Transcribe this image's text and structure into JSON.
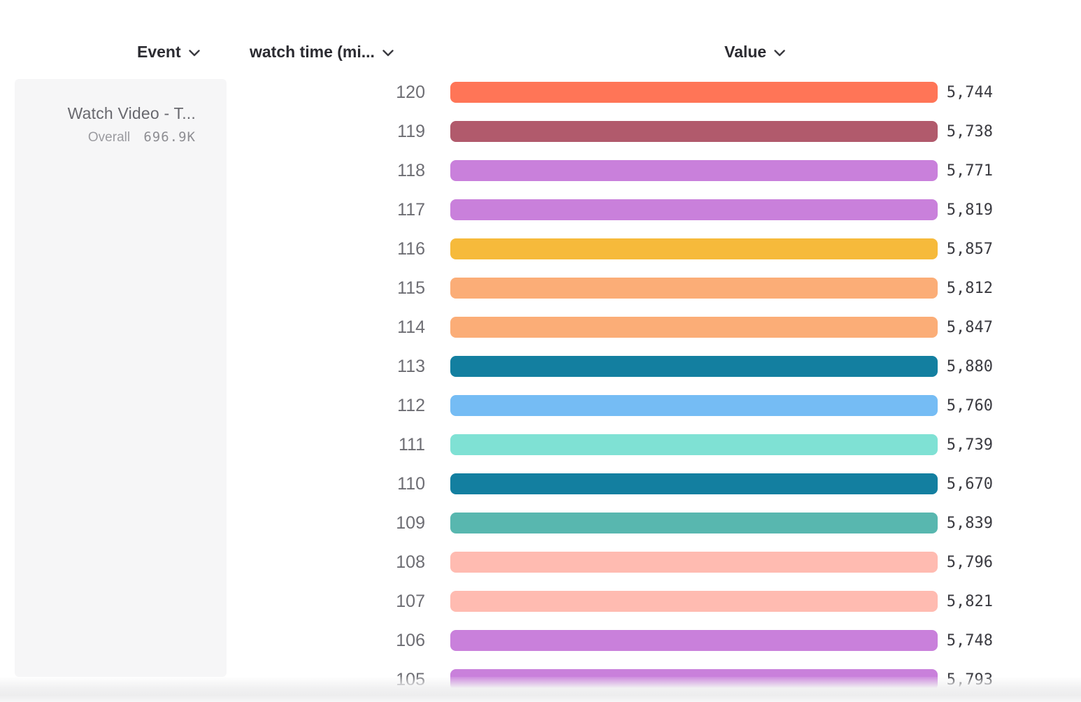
{
  "header": {
    "columns": [
      {
        "label": "Event"
      },
      {
        "label": "watch time (mi..."
      },
      {
        "label": "Value"
      }
    ]
  },
  "event_panel": {
    "title": "Watch Video - T...",
    "overall_label": "Overall",
    "overall_value": "696.9K"
  },
  "chart_data": {
    "type": "bar",
    "orientation": "horizontal",
    "title": "",
    "xlabel": "Value",
    "ylabel": "watch time (min)",
    "xlim": [
      0,
      5880
    ],
    "categories": [
      "120",
      "119",
      "118",
      "117",
      "116",
      "115",
      "114",
      "113",
      "112",
      "111",
      "110",
      "109",
      "108",
      "107",
      "106",
      "105"
    ],
    "values": [
      5744,
      5738,
      5771,
      5819,
      5857,
      5812,
      5847,
      5880,
      5760,
      5739,
      5670,
      5839,
      5796,
      5821,
      5748,
      5793
    ],
    "display_values": [
      "5,744",
      "5,738",
      "5,771",
      "5,819",
      "5,857",
      "5,812",
      "5,847",
      "5,880",
      "5,760",
      "5,739",
      "5,670",
      "5,839",
      "5,796",
      "5,821",
      "5,748",
      "5,793"
    ],
    "colors": [
      "#FF7557",
      "#B15A6C",
      "#C980DB",
      "#C980DB",
      "#F6BA3B",
      "#FBAD77",
      "#FBAD77",
      "#137FA0",
      "#75BCF4",
      "#7FE1D4",
      "#137FA0",
      "#58B7AF",
      "#FFBBB1",
      "#FFBBB1",
      "#C980DB",
      "#C980DB"
    ]
  },
  "icons": {
    "chevron_color": "#3a3a40"
  }
}
